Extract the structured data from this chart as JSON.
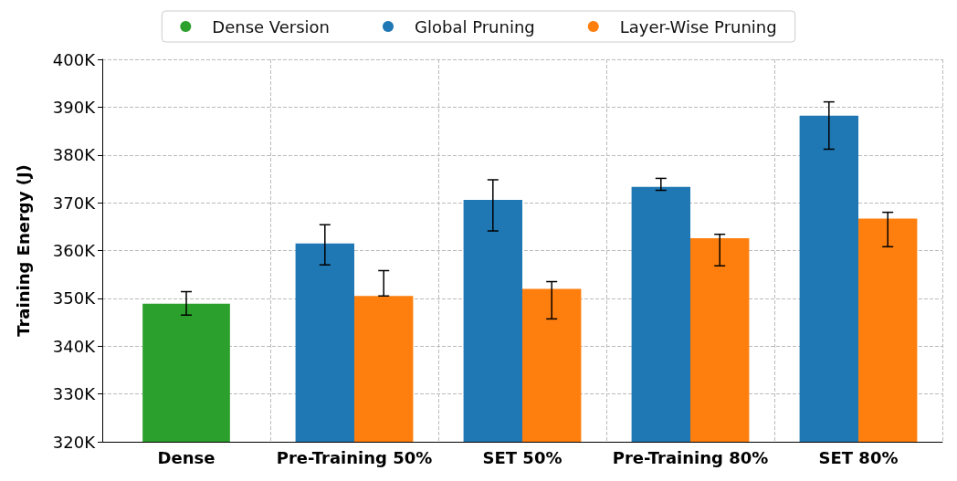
{
  "chart_data": {
    "type": "bar",
    "ylabel": "Training Energy (J)",
    "categories": [
      "Dense",
      "Pre-Training 50%",
      "SET 50%",
      "Pre-Training 80%",
      "SET 80%"
    ],
    "series": [
      {
        "name": "Dense Version",
        "color": "#2ca02c",
        "values": [
          348.9,
          null,
          null,
          null,
          null
        ],
        "errors": [
          [
            346.5,
            351.4
          ],
          null,
          null,
          null,
          null
        ]
      },
      {
        "name": "Global Pruning",
        "color": "#1f77b4",
        "values": [
          null,
          361.5,
          370.6,
          373.3,
          388.2
        ],
        "errors": [
          null,
          [
            357.0,
            365.4
          ],
          [
            364.1,
            374.8
          ],
          [
            372.6,
            375.1
          ],
          [
            381.2,
            391.1
          ]
        ]
      },
      {
        "name": "Layer-Wise Pruning",
        "color": "#ff7f0e",
        "values": [
          null,
          350.5,
          352.0,
          362.6,
          366.7
        ],
        "errors": [
          null,
          [
            350.5,
            355.8
          ],
          [
            345.7,
            353.5
          ],
          [
            356.8,
            363.4
          ],
          [
            360.8,
            368.0
          ]
        ]
      }
    ],
    "ylim": [
      320,
      400
    ],
    "yticks": [
      {
        "value": 320,
        "label": "320K"
      },
      {
        "value": 330,
        "label": "330K"
      },
      {
        "value": 340,
        "label": "340K"
      },
      {
        "value": 350,
        "label": "350K"
      },
      {
        "value": 360,
        "label": "360K"
      },
      {
        "value": 370,
        "label": "370K"
      },
      {
        "value": 380,
        "label": "380K"
      },
      {
        "value": 390,
        "label": "390K"
      },
      {
        "value": 400,
        "label": "400K"
      }
    ],
    "grid": true,
    "legend": "top"
  }
}
